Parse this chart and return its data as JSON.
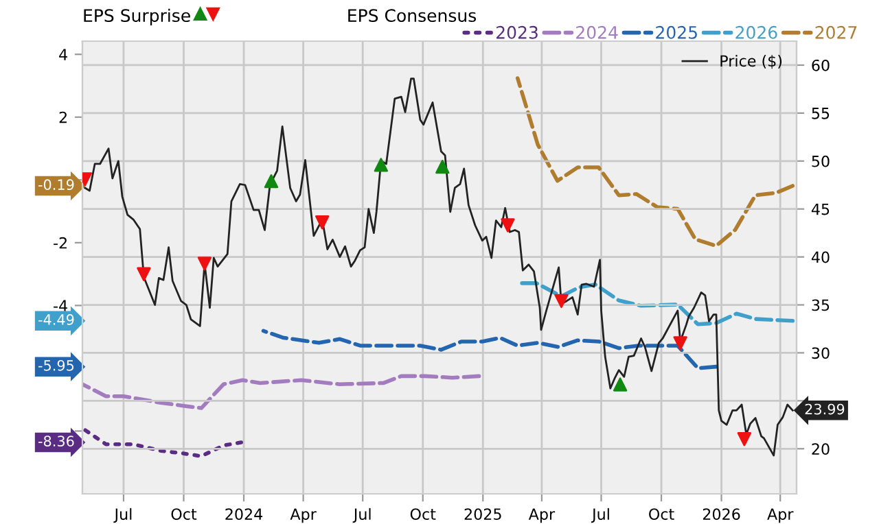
{
  "chart_data": {
    "type": "line",
    "legend_title": "EPS Consensus",
    "annotations": [
      "EPS Surprise",
      "-0.19",
      "-4.49",
      "-5.95",
      "-8.36",
      "23.99"
    ],
    "xlim": [
      "2023-04-29",
      "2026-04-26"
    ],
    "xticks": [
      {
        "value": "2023-07-01",
        "label": "Jul"
      },
      {
        "value": "2023-10-01",
        "label": "Oct"
      },
      {
        "value": "2024-01-01",
        "label": "2024"
      },
      {
        "value": "2024-04-01",
        "label": "Apr"
      },
      {
        "value": "2024-07-01",
        "label": "Jul"
      },
      {
        "value": "2024-10-01",
        "label": "Oct"
      },
      {
        "value": "2025-01-01",
        "label": "2025"
      },
      {
        "value": "2025-04-01",
        "label": "Apr"
      },
      {
        "value": "2025-07-01",
        "label": "Jul"
      },
      {
        "value": "2025-10-01",
        "label": "Oct"
      },
      {
        "value": "2026-01-01",
        "label": "2026"
      },
      {
        "value": "2026-04-01",
        "label": "Apr"
      }
    ],
    "ylim": [
      -10,
      4.42
    ],
    "yticks": [
      4,
      2,
      {
        "value": 0,
        "label": null
      },
      -2,
      -4,
      {
        "value": -6,
        "label": null
      },
      {
        "value": -8,
        "label": null
      }
    ],
    "y2lim": [
      15.3,
      62.5
    ],
    "y2ticks": [
      20,
      {
        "value": 25,
        "label": null
      },
      30,
      35,
      40,
      45,
      50,
      55,
      60
    ],
    "grid": true,
    "legend": "top",
    "series": [
      {
        "name": "2023",
        "color": "#5b2c83",
        "line_style": "dotted",
        "x": [
          "2023-04-29",
          "2023-06-04",
          "2023-07-16",
          "2023-08-27",
          "2023-09-29",
          "2023-10-28",
          "2023-12-01",
          "2023-12-28"
        ],
        "values": [
          -7.91,
          -8.42,
          -8.42,
          -8.63,
          -8.71,
          -8.8,
          -8.46,
          -8.36
        ]
      },
      {
        "name": "2024",
        "color": "#a37bbf",
        "line_style": "dashed",
        "x": [
          "2023-04-29",
          "2023-06-04",
          "2023-07-01",
          "2023-08-27",
          "2023-09-29",
          "2023-10-28",
          "2023-12-01",
          "2023-12-30",
          "2024-01-26",
          "2024-03-29",
          "2024-05-27",
          "2024-08-02",
          "2024-08-29",
          "2024-10-04",
          "2024-11-15",
          "2024-12-26"
        ],
        "values": [
          -6.51,
          -6.89,
          -6.89,
          -7.1,
          -7.19,
          -7.27,
          -6.51,
          -6.38,
          -6.47,
          -6.38,
          -6.51,
          -6.47,
          -6.25,
          -6.25,
          -6.3,
          -6.25
        ]
      },
      {
        "name": "2025",
        "color": "#2465b0",
        "line_style": "dashed",
        "x": [
          "2024-01-31",
          "2024-03-02",
          "2024-04-25",
          "2024-05-27",
          "2024-06-27",
          "2024-09-27",
          "2024-10-29",
          "2024-11-29",
          "2024-12-31",
          "2025-01-27",
          "2025-02-23",
          "2025-03-26",
          "2025-04-26",
          "2025-05-26",
          "2025-06-28",
          "2025-07-28",
          "2025-08-27",
          "2025-10-26",
          "2025-11-26",
          "2025-12-24"
        ],
        "values": [
          -4.81,
          -5.03,
          -5.19,
          -5.07,
          -5.28,
          -5.28,
          -5.41,
          -5.15,
          -5.15,
          -5.03,
          -5.28,
          -5.19,
          -5.32,
          -5.11,
          -5.15,
          -5.36,
          -5.28,
          -5.28,
          -6.0,
          -5.95
        ]
      },
      {
        "name": "2026",
        "color": "#3fa0cc",
        "line_style": "dashed",
        "x": [
          "2025-02-23",
          "2025-03-24",
          "2025-05-01",
          "2025-05-28",
          "2025-06-22",
          "2025-07-28",
          "2025-08-31",
          "2025-10-26",
          "2025-11-26",
          "2025-12-24",
          "2026-01-24",
          "2026-02-22",
          "2026-04-20"
        ],
        "values": [
          -3.29,
          -3.29,
          -3.71,
          -3.42,
          -3.33,
          -3.84,
          -4.01,
          -3.97,
          -4.6,
          -4.56,
          -4.26,
          -4.43,
          -4.49
        ]
      },
      {
        "name": "2027",
        "color": "#b07c2e",
        "line_style": "dashed",
        "x": [
          "2025-02-23",
          "2025-03-26",
          "2025-04-25",
          "2025-05-26",
          "2025-06-27",
          "2025-07-28",
          "2025-08-24",
          "2025-09-25",
          "2025-10-26",
          "2025-11-22",
          "2025-12-24",
          "2026-01-22",
          "2026-02-22",
          "2026-03-26",
          "2026-04-20"
        ],
        "values": [
          3.24,
          1.12,
          -0.03,
          0.4,
          0.4,
          -0.49,
          -0.45,
          -0.87,
          -0.92,
          -1.89,
          -2.1,
          -1.59,
          -0.49,
          -0.41,
          -0.19
        ]
      },
      {
        "name": "Price ($)",
        "color": "#222222",
        "axis": "y2",
        "line_style": "solid",
        "x": [
          "2023-05-03",
          "2023-05-10",
          "2023-05-18",
          "2023-05-26",
          "2023-06-08",
          "2023-06-14",
          "2023-06-23",
          "2023-06-29",
          "2023-07-07",
          "2023-07-16",
          "2023-07-26",
          "2023-08-01",
          "2023-08-18",
          "2023-08-24",
          "2023-08-31",
          "2023-09-08",
          "2023-09-14",
          "2023-09-27",
          "2023-10-05",
          "2023-10-12",
          "2023-10-26",
          "2023-11-02",
          "2023-11-10",
          "2023-11-16",
          "2023-11-22",
          "2023-12-07",
          "2023-12-13",
          "2023-12-26",
          "2024-01-03",
          "2024-01-16",
          "2024-01-24",
          "2024-02-02",
          "2024-02-10",
          "2024-02-21",
          "2024-02-29",
          "2024-03-12",
          "2024-03-21",
          "2024-03-27",
          "2024-04-04",
          "2024-04-17",
          "2024-04-30",
          "2024-05-08",
          "2024-05-16",
          "2024-05-27",
          "2024-06-04",
          "2024-06-13",
          "2024-06-19",
          "2024-06-27",
          "2024-07-04",
          "2024-07-10",
          "2024-07-18",
          "2024-07-22",
          "2024-07-29",
          "2024-08-06",
          "2024-08-19",
          "2024-08-29",
          "2024-09-04",
          "2024-09-13",
          "2024-09-17",
          "2024-09-27",
          "2024-10-02",
          "2024-10-16",
          "2024-10-29",
          "2024-11-04",
          "2024-11-12",
          "2024-11-19",
          "2024-11-27",
          "2024-12-03",
          "2024-12-10",
          "2024-12-20",
          "2024-12-31",
          "2025-01-06",
          "2025-01-14",
          "2025-01-21",
          "2025-01-29",
          "2025-02-04",
          "2025-02-11",
          "2025-02-19",
          "2025-02-25",
          "2025-03-03",
          "2025-03-12",
          "2025-03-20",
          "2025-03-29",
          "2025-03-31",
          "2025-04-08",
          "2025-04-21",
          "2025-04-27",
          "2025-05-01",
          "2025-05-09",
          "2025-05-18",
          "2025-05-26",
          "2025-06-01",
          "2025-06-08",
          "2025-06-20",
          "2025-06-29",
          "2025-07-01",
          "2025-07-07",
          "2025-07-15",
          "2025-07-22",
          "2025-07-28",
          "2025-08-05",
          "2025-08-12",
          "2025-08-20",
          "2025-08-31",
          "2025-09-06",
          "2025-09-16",
          "2025-09-27",
          "2025-10-03",
          "2025-10-26",
          "2025-10-30",
          "2025-11-08",
          "2025-11-12",
          "2025-11-20",
          "2025-12-01",
          "2025-12-07",
          "2025-12-13",
          "2025-12-20",
          "2025-12-24",
          "2025-12-28",
          "2026-01-01",
          "2026-01-09",
          "2026-01-18",
          "2026-01-24",
          "2026-02-01",
          "2026-02-08",
          "2026-02-14",
          "2026-02-22",
          "2026-03-03",
          "2026-03-07",
          "2026-03-22",
          "2026-03-28",
          "2026-04-05",
          "2026-04-12",
          "2026-04-20"
        ],
        "values": [
          47.2,
          46.9,
          49.7,
          49.7,
          51.3,
          48.2,
          50.0,
          46.3,
          44.4,
          43.9,
          42.9,
          37.9,
          35.0,
          37.8,
          37.6,
          41.0,
          37.5,
          35.4,
          35.0,
          33.5,
          32.8,
          39.3,
          34.7,
          39.9,
          39.0,
          40.3,
          45.8,
          47.6,
          47.5,
          44.9,
          44.9,
          42.8,
          47.5,
          49.0,
          53.6,
          47.2,
          45.8,
          46.5,
          50.1,
          42.2,
          43.9,
          40.8,
          41.8,
          40.0,
          41.1,
          39.0,
          39.6,
          40.7,
          41.0,
          45.0,
          42.5,
          44.7,
          50.0,
          49.7,
          56.5,
          56.7,
          55.1,
          58.6,
          58.6,
          54.3,
          53.8,
          56.1,
          51.0,
          50.6,
          44.7,
          47.2,
          47.6,
          49.2,
          45.4,
          43.3,
          41.7,
          42.1,
          39.9,
          43.8,
          43.1,
          45.1,
          42.6,
          42.8,
          42.6,
          38.6,
          39.2,
          38.5,
          34.7,
          32.4,
          34.4,
          37.5,
          38.9,
          35.1,
          35.4,
          35.8,
          34.0,
          37.1,
          37.2,
          36.9,
          39.7,
          34.4,
          29.6,
          26.3,
          27.4,
          28.2,
          27.5,
          29.6,
          29.7,
          31.5,
          30.6,
          28.1,
          31.0,
          31.5,
          34.4,
          31.2,
          32.9,
          33.8,
          34.7,
          36.3,
          36.0,
          33.3,
          34.0,
          34.0,
          24.0,
          22.9,
          22.5,
          24.0,
          24.0,
          24.6,
          21.5,
          22.6,
          23.2,
          21.3,
          21.1,
          19.3,
          22.5,
          23.3,
          24.6,
          24.0
        ]
      },
      {
        "type": "scatter",
        "color": "#118811",
        "axis": "y2",
        "marker": "triangle",
        "x": [
          "2024-02-12",
          "2024-07-29",
          "2024-10-31",
          "2025-07-30"
        ],
        "values": [
          47.9,
          49.6,
          49.4,
          26.7
        ]
      },
      {
        "type": "scatter",
        "color": "#ee1111",
        "axis": "y2",
        "marker": "triangle_down",
        "x": [
          "2023-05-03",
          "2023-08-01",
          "2023-11-02",
          "2024-04-30",
          "2025-02-08",
          "2025-05-01",
          "2025-10-30",
          "2026-02-05"
        ],
        "values": [
          48.1,
          38.2,
          39.3,
          43.6,
          43.3,
          35.4,
          31.0,
          21.0
        ]
      }
    ]
  }
}
